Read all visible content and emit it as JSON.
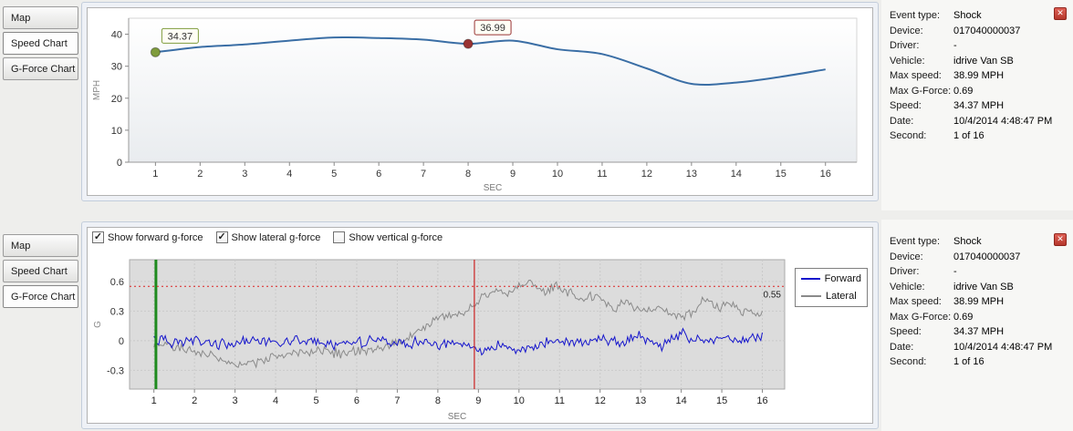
{
  "icons": {
    "close": "✕",
    "check": "✓"
  },
  "tabs": [
    {
      "label": "Map"
    },
    {
      "label": "Speed Chart"
    },
    {
      "label": "G-Force Chart"
    }
  ],
  "info": {
    "rows": [
      {
        "label": "Event type:",
        "value": "Shock"
      },
      {
        "label": "Device:",
        "value": "017040000037"
      },
      {
        "label": "Driver:",
        "value": "-"
      },
      {
        "label": "Vehicle:",
        "value": "idrive Van SB"
      },
      {
        "label": "Max speed:",
        "value": "38.99 MPH"
      },
      {
        "label": "Max G-Force:",
        "value": "0.69"
      },
      {
        "label": "Speed:",
        "value": "34.37 MPH"
      },
      {
        "label": "Date:",
        "value": "10/4/2014 4:48:47 PM"
      },
      {
        "label": "Second:",
        "value": "1 of 16"
      }
    ]
  },
  "gforce": {
    "checkboxes": [
      {
        "label": "Show forward g-force",
        "checked": true
      },
      {
        "label": "Show lateral g-force",
        "checked": true
      },
      {
        "label": "Show vertical g-force",
        "checked": false
      }
    ]
  },
  "chart_data": [
    {
      "type": "line",
      "title": "Speed Chart",
      "xlabel": "SEC",
      "ylabel": "MPH",
      "xlim": [
        0.4,
        16.7
      ],
      "ylim": [
        0,
        45
      ],
      "xticks": [
        1,
        2,
        3,
        4,
        5,
        6,
        7,
        8,
        9,
        10,
        11,
        12,
        13,
        14,
        15,
        16
      ],
      "yticks": [
        0,
        10,
        20,
        30,
        40
      ],
      "x": [
        1,
        2,
        3,
        4,
        5,
        6,
        7,
        8,
        9,
        10,
        11,
        12,
        13,
        14,
        15,
        16
      ],
      "values": [
        34.37,
        36.0,
        36.8,
        38.0,
        38.99,
        38.8,
        38.3,
        36.99,
        38.0,
        35.3,
        33.8,
        29.3,
        24.5,
        24.9,
        26.7,
        29.0
      ],
      "line_color": "#3a6ea5",
      "markers": [
        {
          "x": 1,
          "y": 34.37,
          "label": "34.37",
          "color": "#7f9c3c"
        },
        {
          "x": 8,
          "y": 36.99,
          "label": "36.99",
          "color": "#993333"
        }
      ]
    },
    {
      "type": "line",
      "title": "G-Force Chart",
      "xlabel": "SEC",
      "ylabel": "G",
      "xlim": [
        0.4,
        16.55
      ],
      "ylim": [
        -0.49,
        0.82
      ],
      "xticks": [
        1,
        2,
        3,
        4,
        5,
        6,
        7,
        8,
        9,
        10,
        11,
        12,
        13,
        14,
        15,
        16
      ],
      "yticks": [
        -0.3,
        0,
        0.3,
        0.6
      ],
      "threshold": {
        "y": 0.55,
        "label": "0.55",
        "color": "#dd2222"
      },
      "vlines": [
        {
          "x": 1.05,
          "color": "#1e8a1e",
          "width": 3
        },
        {
          "x": 8.9,
          "color": "#cc2222",
          "width": 1.2
        }
      ],
      "legend_position": "right",
      "series": [
        {
          "name": "Forward",
          "color": "#1515cc",
          "noise": 0.045,
          "anchors": [
            [
              1,
              0.02
            ],
            [
              1.5,
              -0.03
            ],
            [
              2,
              0.01
            ],
            [
              2.5,
              -0.04
            ],
            [
              3,
              -0.01
            ],
            [
              3.5,
              0.01
            ],
            [
              4,
              -0.03
            ],
            [
              4.5,
              0.0
            ],
            [
              5,
              -0.02
            ],
            [
              5.5,
              -0.05
            ],
            [
              6,
              -0.01
            ],
            [
              6.5,
              0.0
            ],
            [
              7,
              -0.04
            ],
            [
              7.5,
              -0.02
            ],
            [
              8,
              -0.05
            ],
            [
              8.5,
              -0.02
            ],
            [
              9,
              -0.09
            ],
            [
              9.5,
              -0.04
            ],
            [
              10,
              -0.11
            ],
            [
              10.5,
              -0.04
            ],
            [
              11,
              0.0
            ],
            [
              11.5,
              -0.03
            ],
            [
              12,
              0.02
            ],
            [
              12.5,
              -0.02
            ],
            [
              13,
              0.05
            ],
            [
              13.5,
              -0.06
            ],
            [
              14,
              0.08
            ],
            [
              14.5,
              -0.02
            ],
            [
              15,
              0.04
            ],
            [
              15.5,
              0.0
            ],
            [
              16,
              0.05
            ]
          ]
        },
        {
          "name": "Lateral",
          "color": "#8a8a8a",
          "noise": 0.045,
          "anchors": [
            [
              1,
              -0.02
            ],
            [
              1.5,
              -0.08
            ],
            [
              2,
              -0.1
            ],
            [
              2.5,
              -0.15
            ],
            [
              3,
              -0.24
            ],
            [
              3.3,
              -0.26
            ],
            [
              3.6,
              -0.21
            ],
            [
              4,
              -0.16
            ],
            [
              4.5,
              -0.12
            ],
            [
              5,
              -0.1
            ],
            [
              5.5,
              -0.13
            ],
            [
              6,
              -0.1
            ],
            [
              6.5,
              -0.08
            ],
            [
              7,
              -0.03
            ],
            [
              7.5,
              0.09
            ],
            [
              8,
              0.23
            ],
            [
              8.3,
              0.29
            ],
            [
              8.6,
              0.26
            ],
            [
              8.9,
              0.34
            ],
            [
              9.1,
              0.46
            ],
            [
              9.4,
              0.5
            ],
            [
              9.7,
              0.47
            ],
            [
              10,
              0.54
            ],
            [
              10.3,
              0.6
            ],
            [
              10.6,
              0.5
            ],
            [
              10.9,
              0.55
            ],
            [
              11.2,
              0.49
            ],
            [
              11.6,
              0.45
            ],
            [
              12,
              0.43
            ],
            [
              12.3,
              0.34
            ],
            [
              12.6,
              0.38
            ],
            [
              13,
              0.3
            ],
            [
              13.5,
              0.33
            ],
            [
              14,
              0.24
            ],
            [
              14.3,
              0.3
            ],
            [
              14.6,
              0.42
            ],
            [
              14.9,
              0.34
            ],
            [
              15.2,
              0.38
            ],
            [
              15.5,
              0.3
            ],
            [
              16,
              0.28
            ]
          ]
        }
      ]
    }
  ]
}
